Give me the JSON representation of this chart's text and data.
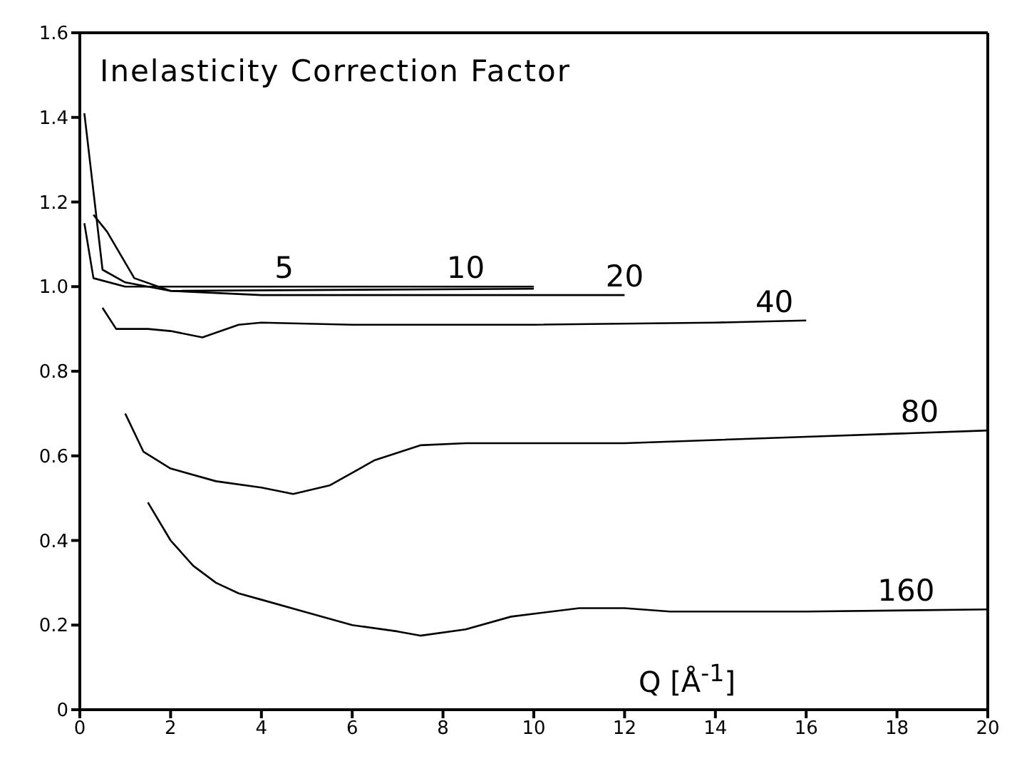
{
  "chart_data": {
    "type": "line",
    "title": "Inelasticity Correction Factor",
    "xlabel": "Q  [Å$^{-1}$]",
    "xlim": [
      0,
      20
    ],
    "xticks": [
      0,
      2,
      4,
      6,
      8,
      10,
      12,
      14,
      16,
      18,
      20
    ],
    "ylim": [
      0,
      1.6
    ],
    "yticks": [
      0,
      0.2,
      0.4,
      0.6,
      0.8,
      {
        "value": 1,
        "label": "1.0"
      },
      {
        "value": 1.2,
        "label": "1.2"
      },
      {
        "value": 1.4,
        "label": "1.4"
      },
      {
        "value": 1.6,
        "label": "1.6"
      }
    ],
    "marker": "none",
    "line_style": "solid",
    "series": [
      {
        "color": "#000000",
        "x": [
          0.1,
          0.3,
          1,
          4,
          10
        ],
        "values": [
          1.15,
          1.02,
          1.0,
          1.0,
          1.0
        ]
      },
      {
        "color": "#000000",
        "x": [
          0.1,
          0.5,
          1,
          2,
          10
        ],
        "values": [
          1.41,
          1.04,
          1.01,
          0.99,
          0.995
        ]
      },
      {
        "color": "#000000",
        "x": [
          0.3,
          0.6,
          1.2,
          2,
          4,
          8,
          12
        ],
        "values": [
          1.17,
          1.13,
          1.02,
          0.99,
          0.98,
          0.98,
          0.98
        ]
      },
      {
        "color": "#000000",
        "x": [
          0.5,
          0.8,
          1.5,
          2,
          2.7,
          3.5,
          4,
          6,
          10,
          14,
          16
        ],
        "values": [
          0.95,
          0.9,
          0.9,
          0.895,
          0.88,
          0.91,
          0.915,
          0.91,
          0.91,
          0.915,
          0.92
        ]
      },
      {
        "color": "#000000",
        "x": [
          1,
          1.4,
          2,
          3,
          4,
          4.7,
          5.5,
          6.5,
          7.5,
          8.5,
          12,
          16,
          20
        ],
        "values": [
          0.7,
          0.61,
          0.57,
          0.54,
          0.525,
          0.51,
          0.53,
          0.59,
          0.625,
          0.63,
          0.63,
          0.645,
          0.66
        ]
      },
      {
        "color": "#000000",
        "x": [
          1.5,
          2,
          2.5,
          3,
          3.5,
          4,
          5,
          6,
          7,
          7.5,
          8.5,
          9.5,
          11,
          12,
          13,
          16,
          20
        ],
        "values": [
          0.49,
          0.4,
          0.34,
          0.3,
          0.275,
          0.26,
          0.23,
          0.2,
          0.185,
          0.175,
          0.19,
          0.22,
          0.24,
          0.24,
          0.232,
          0.232,
          0.237
        ]
      }
    ],
    "annotations": [
      {
        "text": "5",
        "x": 4.5,
        "y": 1.0
      },
      {
        "text": "10",
        "x": 8.5,
        "y": 1.0
      },
      {
        "text": "20",
        "x": 12,
        "y": 0.98
      },
      {
        "text": "40",
        "x": 15.3,
        "y": 0.92
      },
      {
        "text": "80",
        "x": 18.5,
        "y": 0.66
      },
      {
        "text": "160",
        "x": 18.2,
        "y": 0.237
      }
    ]
  }
}
